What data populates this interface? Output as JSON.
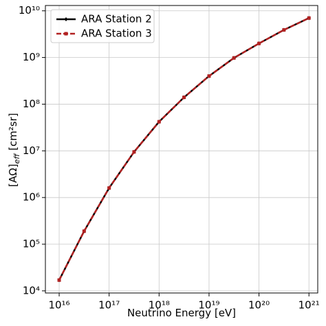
{
  "chart_data": {
    "type": "line",
    "x_label": "Neutrino Energy  [eV]",
    "y_label": "[AΩ]",
    "y_label_subscript": "eff",
    "y_label_unit": "  [cm²sr]",
    "x": [
      1e+16,
      3.16e+16,
      1e+17,
      3.16e+17,
      1e+18,
      3.16e+18,
      1e+19,
      3.16e+19,
      1e+20,
      3.16e+20,
      1e+21
    ],
    "series": [
      {
        "name": "ARA Station 2",
        "color": "#000000",
        "marker": "diamond",
        "dash": false,
        "values": [
          17000,
          190000,
          1600000,
          9500000,
          42000000,
          140000000,
          400000000,
          980000000,
          2000000000,
          3900000000,
          7000000000
        ]
      },
      {
        "name": "ARA Station 3",
        "color": "#b22222",
        "marker": "square",
        "dash": true,
        "values": [
          17000,
          190000,
          1600000,
          9500000,
          42000000,
          140000000,
          400000000,
          980000000,
          2000000000,
          3900000000,
          7000000000
        ]
      }
    ],
    "xlog": true,
    "ylog": true,
    "xlim": [
      5300000000000000.0,
      1.5e+21
    ],
    "ylim": [
      9000,
      13000000000.0
    ],
    "xticks": [
      {
        "value": 1e+16,
        "label": "10¹⁶"
      },
      {
        "value": 1e+17,
        "label": "10¹⁷"
      },
      {
        "value": 1e+18,
        "label": "10¹⁸"
      },
      {
        "value": 1e+19,
        "label": "10¹⁹"
      },
      {
        "value": 1e+20,
        "label": "10²⁰"
      },
      {
        "value": 1e+21,
        "label": "10²¹"
      }
    ],
    "yticks": [
      {
        "value": 10000.0,
        "label": "10⁴"
      },
      {
        "value": 100000.0,
        "label": "10⁵"
      },
      {
        "value": 1000000.0,
        "label": "10⁶"
      },
      {
        "value": 10000000.0,
        "label": "10⁷"
      },
      {
        "value": 100000000.0,
        "label": "10⁸"
      },
      {
        "value": 1000000000.0,
        "label": "10⁹"
      },
      {
        "value": 10000000000.0,
        "label": "10¹⁰"
      }
    ],
    "grid": true,
    "legend": "upper-left"
  }
}
